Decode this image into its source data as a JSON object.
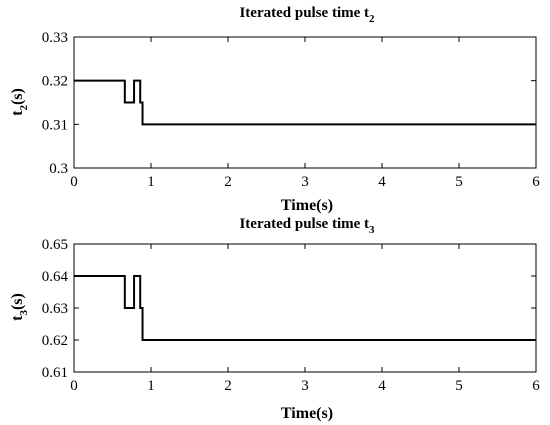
{
  "chart_data": [
    {
      "type": "line",
      "title": "Iterated pulse time t",
      "title_sub": "2",
      "xlabel": "Time(s)",
      "ylabel": "t",
      "ylabel_sub": "2",
      "ylabel_suffix": "(s)",
      "xlim": [
        0,
        6
      ],
      "ylim": [
        0.3,
        0.33
      ],
      "xticks": [
        0,
        1,
        2,
        3,
        4,
        5,
        6
      ],
      "xtick_labels": [
        "0",
        "1",
        "2",
        "3",
        "4",
        "5",
        "6"
      ],
      "yticks": [
        0.3,
        0.31,
        0.32,
        0.33
      ],
      "ytick_labels": [
        "0.3",
        "0.31",
        "0.32",
        "0.33"
      ],
      "grid": false,
      "series": [
        {
          "x": [
            0,
            0.66,
            0.66,
            0.78,
            0.78,
            0.86,
            0.86,
            0.89,
            0.89,
            6
          ],
          "y": [
            0.32,
            0.32,
            0.315,
            0.315,
            0.32,
            0.32,
            0.315,
            0.315,
            0.31,
            0.31
          ],
          "color": "#000000"
        }
      ]
    },
    {
      "type": "line",
      "title": "Iterated pulse time t",
      "title_sub": "3",
      "xlabel": "Time(s)",
      "ylabel": "t",
      "ylabel_sub": "3",
      "ylabel_suffix": "(s)",
      "xlim": [
        0,
        6
      ],
      "ylim": [
        0.61,
        0.65
      ],
      "xticks": [
        0,
        1,
        2,
        3,
        4,
        5,
        6
      ],
      "xtick_labels": [
        "0",
        "1",
        "2",
        "3",
        "4",
        "5",
        "6"
      ],
      "yticks": [
        0.61,
        0.62,
        0.63,
        0.64,
        0.65
      ],
      "ytick_labels": [
        "0.61",
        "0.62",
        "0.63",
        "0.64",
        "0.65"
      ],
      "grid": false,
      "series": [
        {
          "x": [
            0,
            0.66,
            0.66,
            0.78,
            0.78,
            0.86,
            0.86,
            0.89,
            0.89,
            6
          ],
          "y": [
            0.64,
            0.64,
            0.63,
            0.63,
            0.64,
            0.64,
            0.63,
            0.63,
            0.62,
            0.62
          ],
          "color": "#000000"
        }
      ]
    }
  ]
}
